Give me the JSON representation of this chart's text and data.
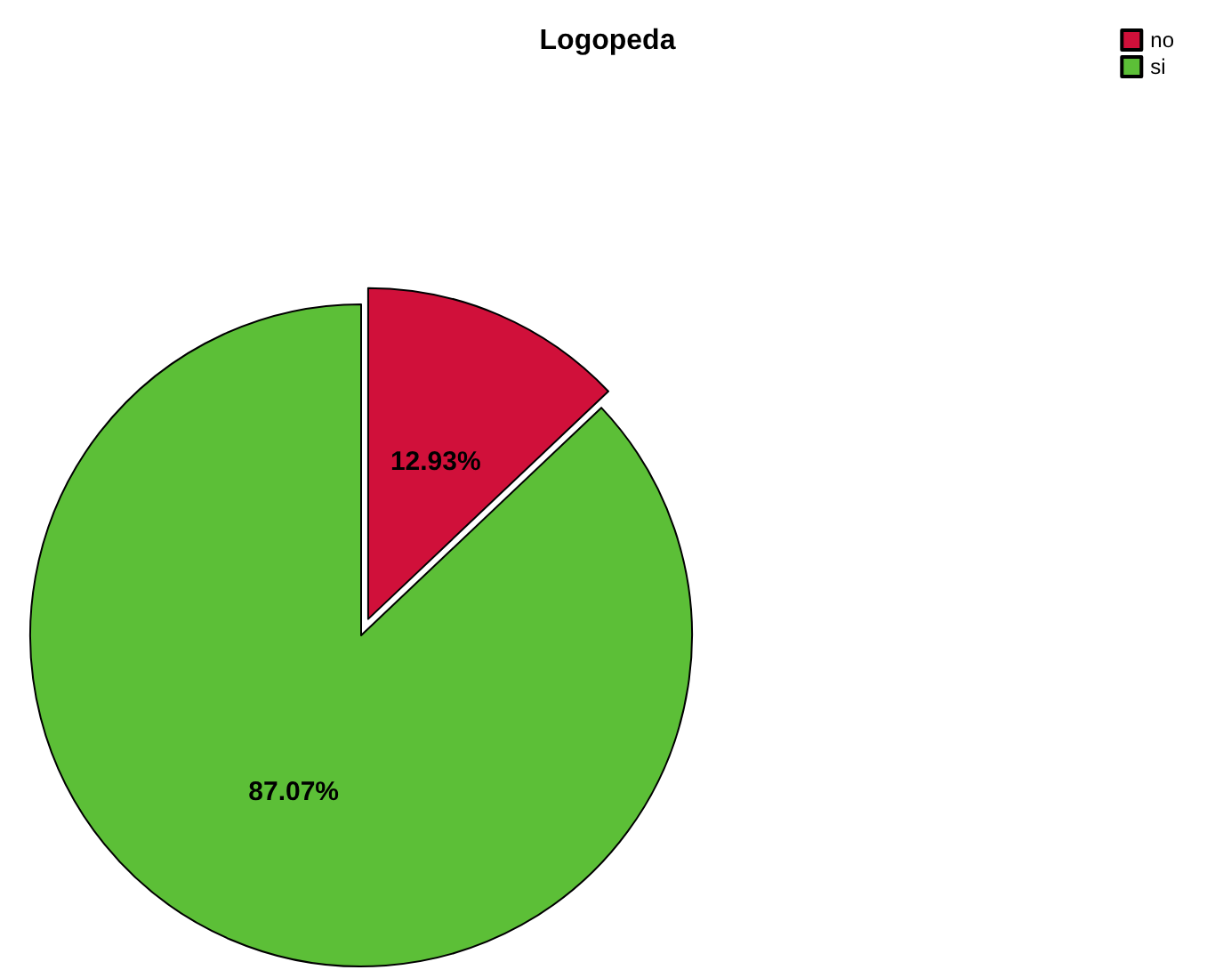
{
  "chart_data": {
    "type": "pie",
    "title": "Logopeda",
    "categories": [
      "no",
      "si"
    ],
    "values": [
      12.93,
      87.07
    ],
    "colors": [
      "#d0103a",
      "#5cbf37"
    ],
    "value_labels": [
      "12.93%",
      "87.07%"
    ],
    "legend": "top right"
  }
}
